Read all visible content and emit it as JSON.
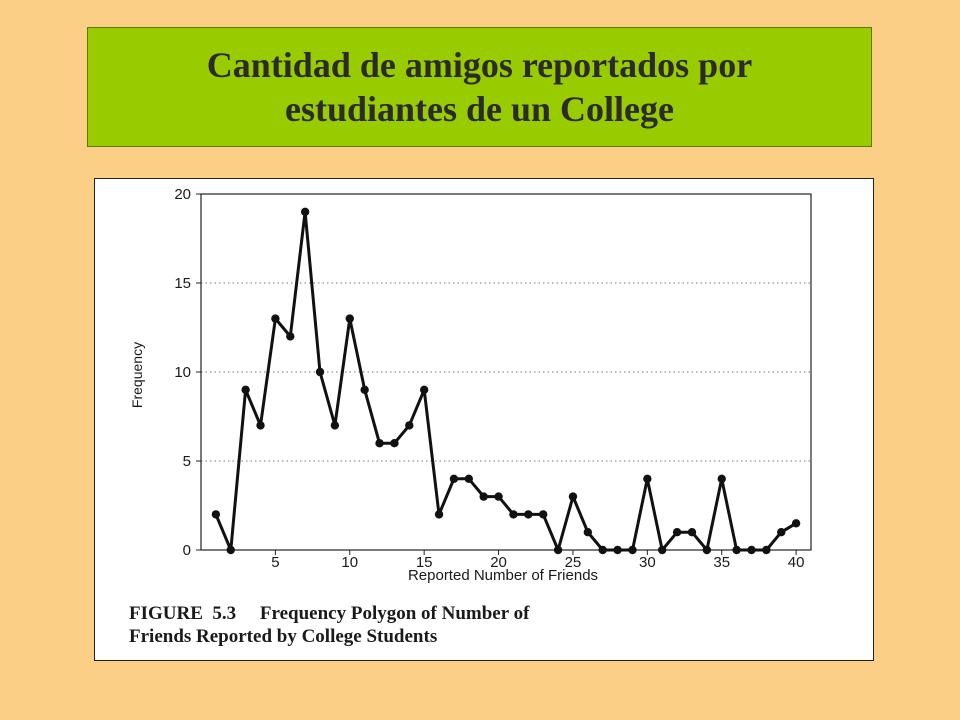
{
  "slide": {
    "title_line1": "Cantidad de amigos reportados por",
    "title_line2": "estudiantes de un College"
  },
  "figure": {
    "caption_line1": "FIGURE  5.3     Frequency Polygon of Number of",
    "caption_line2": "Friends Reported by College Students"
  },
  "colors": {
    "background": "#fccf86",
    "title_bar": "#99cc00",
    "line": "#111111"
  },
  "chart_data": {
    "type": "line",
    "xlabel": "Reported Number of Friends",
    "ylabel": "Frequency",
    "xlim": [
      0,
      41
    ],
    "ylim": [
      0,
      20
    ],
    "x_ticks": [
      5,
      10,
      15,
      20,
      25,
      30,
      35,
      40
    ],
    "y_ticks": [
      0,
      5,
      10,
      15,
      20
    ],
    "grid": "horizontal dotted",
    "series": [
      {
        "x": [
          1,
          2,
          3,
          4,
          5,
          6,
          7,
          8,
          9,
          10,
          11,
          12,
          13,
          14,
          15,
          16,
          17,
          18,
          19,
          20,
          21,
          22,
          23,
          24,
          25,
          26,
          27,
          28,
          29,
          30,
          31,
          32,
          33,
          34,
          35,
          36,
          37,
          38,
          39,
          40
        ],
        "values": [
          2,
          0,
          9,
          7,
          13,
          12,
          19,
          10,
          7,
          13,
          9,
          6,
          6,
          7,
          9,
          2,
          4,
          4,
          3,
          3,
          2,
          2,
          2,
          0,
          3,
          1,
          0,
          0,
          0,
          4,
          0,
          1,
          1,
          0,
          4,
          0,
          0,
          0,
          1,
          1.5
        ]
      }
    ]
  }
}
